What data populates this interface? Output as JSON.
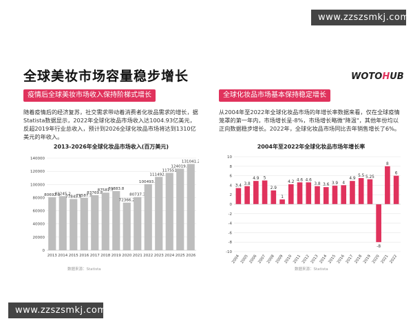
{
  "watermark": "www.zzszsmkj.com",
  "page_title": "全球美妆市场容量稳步增长",
  "brand": {
    "part1": "WOTO",
    "part2": "H",
    "part3": "UB"
  },
  "left": {
    "tag": "疫情后全球美妆市场收入保持阶梯式增长",
    "paragraph": "随着疫情后的经济复苏，社交需求带动着消费者化妆品需求的增长，据Statista数据显示，2022年全球化妆品市场收入达1004.93亿美元，反超2019年行业总收入，预计到2026全球化妆品市场将达到1310亿美元的年收入。",
    "source": "数据来源：Statista"
  },
  "right": {
    "tag": "全球化妆品市场基本保持稳定增长",
    "paragraph": "从2004年至2022年全球化妆品市场的年增长率数据来看，仅在全球疫情笼罩的第一年内，市场增长呈-8%，市场增长略微\"降温\"，其他年份均以正向数据稳步增长。2022年，全球化妆品市场同比去年销售增长了6%。",
    "source": "数据来源：Statista"
  },
  "chart_data": [
    {
      "type": "bar",
      "title": "2013-2026年全球化妆品市场收入(百万美元)",
      "categories": [
        "2013",
        "2014",
        "2015",
        "2016",
        "2017",
        "2018",
        "2019",
        "2020",
        "2021",
        "2022",
        "2023",
        "2024",
        "2025",
        "2026"
      ],
      "values": [
        80692.9,
        82245.2,
        77845.5,
        79587.9,
        83769.8,
        87581.7,
        89883.8,
        72366.2,
        80737.3,
        100493.8,
        111492.3,
        117551,
        124019.8,
        131041.2
      ],
      "value_labels": [
        "80692.9",
        "82245.2",
        "77845.5",
        "79587.9",
        "83769.8",
        "87581.7",
        "89883.8",
        "72366.2",
        "80737.3",
        "100493.8",
        "111492.3",
        "117551",
        "124019.8",
        "131041.2"
      ],
      "y_ticks": [
        "0",
        "20000",
        "40000",
        "60000",
        "80000",
        "100000",
        "120000",
        "140000"
      ],
      "ylim": [
        0,
        140000
      ],
      "grid": true,
      "colors": {
        "bar": "#bdbdbd",
        "axis_text": "#444444"
      }
    },
    {
      "type": "bar",
      "title": "2004年至2022年全球化妆品市场年增长率",
      "categories": [
        "2004",
        "2005",
        "2006",
        "2007",
        "2008",
        "2009",
        "2010",
        "2011",
        "2012",
        "2013",
        "2014",
        "2015",
        "2016",
        "2017",
        "2018",
        "2019",
        "2020",
        "2021",
        "2022"
      ],
      "values": [
        3.4,
        3.8,
        4.9,
        5,
        2.9,
        1,
        4.2,
        4.6,
        4.6,
        3.8,
        3.6,
        3.9,
        4,
        4.9,
        5.5,
        5.25,
        -8,
        8,
        6
      ],
      "value_labels": [
        "3.4",
        "3.8",
        "4.9",
        "5",
        "2.9",
        "1",
        "4.2",
        "4.6",
        "4.6",
        "3.8",
        "3.6",
        "3.9",
        "4",
        "4.9",
        "5.5",
        "5.25",
        "-8",
        "8",
        "6"
      ],
      "y_ticks": [
        "-10",
        "-8",
        "-6",
        "-4",
        "-2",
        "0",
        "2",
        "4",
        "6",
        "8",
        "10"
      ],
      "ylim": [
        -10,
        10
      ],
      "grid": true,
      "colors": {
        "bar": "#e0325c",
        "axis_text": "#444444"
      }
    }
  ],
  "colors": {
    "accent": "#e0325c",
    "watermark_bg": "#444444"
  }
}
